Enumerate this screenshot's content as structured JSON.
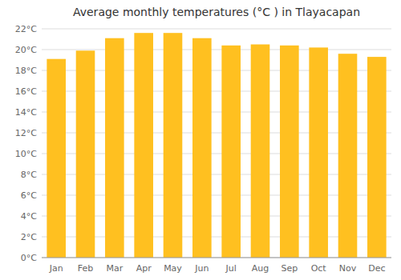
{
  "chart_data": {
    "type": "bar",
    "title": "Average monthly temperatures (°C ) in Tlayacapan",
    "categories": [
      "Jan",
      "Feb",
      "Mar",
      "Apr",
      "May",
      "Jun",
      "Jul",
      "Aug",
      "Sep",
      "Oct",
      "Nov",
      "Dec"
    ],
    "values": [
      19.1,
      19.9,
      21.1,
      21.6,
      21.6,
      21.1,
      20.4,
      20.5,
      20.4,
      20.2,
      19.6,
      19.3
    ],
    "color": "#FFC020",
    "ylim": [
      0,
      22
    ],
    "yticks": [
      {
        "value": 0,
        "label": "0°C"
      },
      {
        "value": 2,
        "label": "2°C"
      },
      {
        "value": 4,
        "label": "4°C"
      },
      {
        "value": 6,
        "label": "6°C"
      },
      {
        "value": 8,
        "label": "8°C"
      },
      {
        "value": 10,
        "label": "10°C"
      },
      {
        "value": 12,
        "label": "12°C"
      },
      {
        "value": 14,
        "label": "14°C"
      },
      {
        "value": 16,
        "label": "16°C"
      },
      {
        "value": 18,
        "label": "18°C"
      },
      {
        "value": 20,
        "label": "20°C"
      },
      {
        "value": 22,
        "label": "22°C"
      }
    ],
    "grid": true
  }
}
